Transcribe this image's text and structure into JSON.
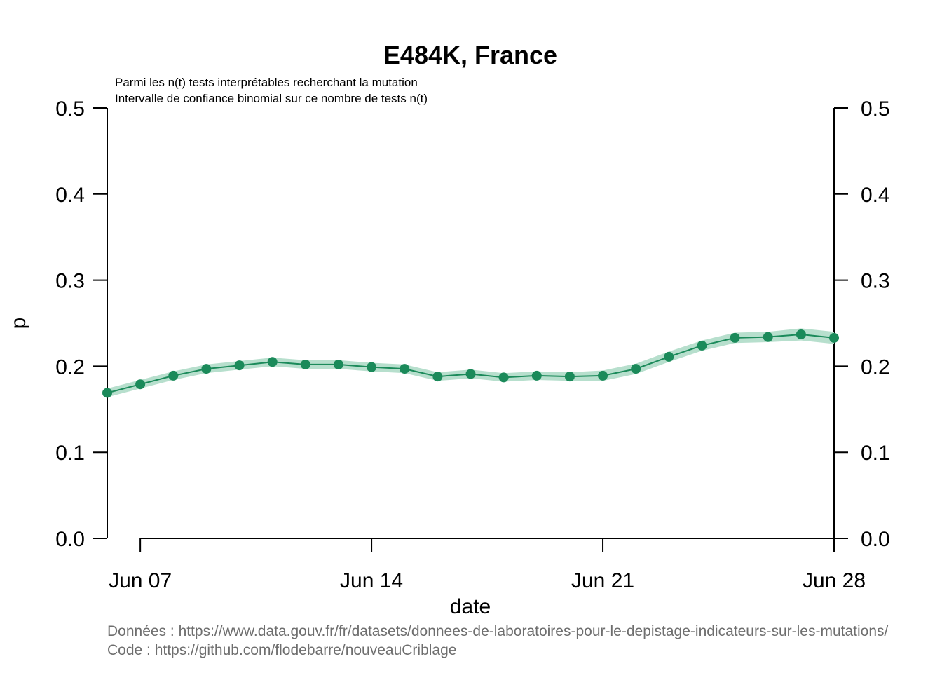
{
  "chart_data": {
    "type": "line",
    "title": "E484K, France",
    "subtitle_lines": [
      "Parmi les n(t) tests interprétables recherchant la mutation",
      "Intervalle de confiance binomial sur ce nombre de tests n(t)"
    ],
    "xlabel": "date",
    "ylabel": "p",
    "ylim": [
      0,
      0.5
    ],
    "yticks": [
      "0.0",
      "0.1",
      "0.2",
      "0.3",
      "0.4",
      "0.5"
    ],
    "x_start": "2021-06-06",
    "xticks": [
      {
        "label": "Jun 07",
        "day": 1
      },
      {
        "label": "Jun 14",
        "day": 8
      },
      {
        "label": "Jun 21",
        "day": 15
      },
      {
        "label": "Jun 28",
        "day": 22
      }
    ],
    "x": [
      "2021-06-06",
      "2021-06-07",
      "2021-06-08",
      "2021-06-09",
      "2021-06-10",
      "2021-06-11",
      "2021-06-12",
      "2021-06-13",
      "2021-06-14",
      "2021-06-15",
      "2021-06-16",
      "2021-06-17",
      "2021-06-18",
      "2021-06-19",
      "2021-06-20",
      "2021-06-21",
      "2021-06-22",
      "2021-06-23",
      "2021-06-24",
      "2021-06-25",
      "2021-06-26",
      "2021-06-27",
      "2021-06-28"
    ],
    "series": [
      {
        "values": [
          0.169,
          0.179,
          0.189,
          0.197,
          0.201,
          0.205,
          0.202,
          0.202,
          0.199,
          0.197,
          0.188,
          0.191,
          0.187,
          0.189,
          0.188,
          0.189,
          0.197,
          0.211,
          0.224,
          0.233,
          0.234,
          0.237,
          0.233
        ],
        "lower": [
          0.164,
          0.174,
          0.184,
          0.192,
          0.196,
          0.2,
          0.197,
          0.197,
          0.194,
          0.192,
          0.183,
          0.186,
          0.182,
          0.184,
          0.183,
          0.183,
          0.191,
          0.205,
          0.218,
          0.227,
          0.228,
          0.23,
          0.226
        ],
        "upper": [
          0.174,
          0.184,
          0.194,
          0.202,
          0.206,
          0.21,
          0.207,
          0.207,
          0.204,
          0.202,
          0.193,
          0.196,
          0.192,
          0.194,
          0.193,
          0.195,
          0.203,
          0.217,
          0.23,
          0.239,
          0.24,
          0.244,
          0.24
        ]
      }
    ],
    "grid": false,
    "colors": {
      "line": "#1b8a5a",
      "band": "#b7dfcd",
      "footer": "#6e6e6e"
    }
  },
  "footer": {
    "data_line": "Données : https://www.data.gouv.fr/fr/datasets/donnees-de-laboratoires-pour-le-depistage-indicateurs-sur-les-mutations/",
    "code_line": "Code : https://github.com/flodebarre/nouveauCriblage"
  }
}
